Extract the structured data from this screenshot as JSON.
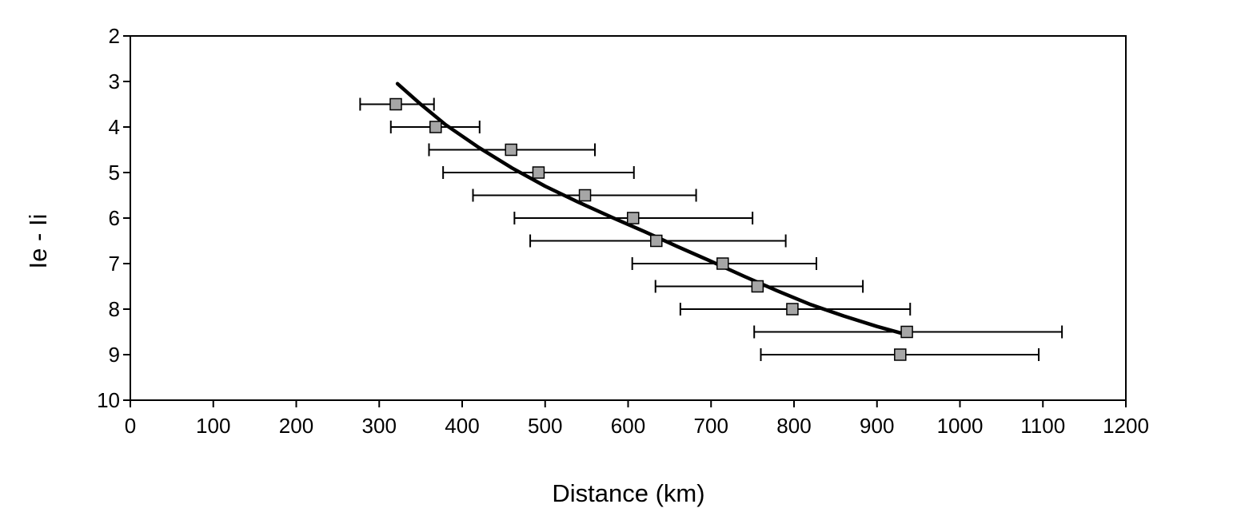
{
  "chart_data": {
    "type": "scatter",
    "xlabel": "Distance (km)",
    "ylabel": "Ie - Ii",
    "xlim": [
      0,
      1200
    ],
    "ylim": [
      2,
      10
    ],
    "y_inverted": true,
    "x_ticks": [
      0,
      100,
      200,
      300,
      400,
      500,
      600,
      700,
      800,
      900,
      1000,
      1100,
      1200
    ],
    "y_ticks": [
      2,
      3,
      4,
      5,
      6,
      7,
      8,
      9,
      10
    ],
    "grid": false,
    "legend": "none",
    "series": [
      {
        "type": "scatter",
        "marker": "square",
        "marker_color": "#a6a6a6",
        "points": [
          {
            "x": 320,
            "y": 3.5,
            "xerr_low": 277,
            "xerr_high": 366
          },
          {
            "x": 368,
            "y": 4.0,
            "xerr_low": 314,
            "xerr_high": 421
          },
          {
            "x": 459,
            "y": 4.5,
            "xerr_low": 360,
            "xerr_high": 560
          },
          {
            "x": 492,
            "y": 5.0,
            "xerr_low": 377,
            "xerr_high": 607
          },
          {
            "x": 548,
            "y": 5.5,
            "xerr_low": 413,
            "xerr_high": 682
          },
          {
            "x": 606,
            "y": 6.0,
            "xerr_low": 463,
            "xerr_high": 750
          },
          {
            "x": 634,
            "y": 6.5,
            "xerr_low": 482,
            "xerr_high": 790
          },
          {
            "x": 714,
            "y": 7.0,
            "xerr_low": 605,
            "xerr_high": 827
          },
          {
            "x": 756,
            "y": 7.5,
            "xerr_low": 633,
            "xerr_high": 883
          },
          {
            "x": 798,
            "y": 8.0,
            "xerr_low": 663,
            "xerr_high": 940
          },
          {
            "x": 936,
            "y": 8.5,
            "xerr_low": 752,
            "xerr_high": 1123
          },
          {
            "x": 928,
            "y": 9.0,
            "xerr_low": 760,
            "xerr_high": 1095
          }
        ]
      },
      {
        "type": "line",
        "line_color": "#000000",
        "x": [
          322,
          350,
          380,
          420,
          460,
          500,
          540,
          580,
          620,
          660,
          700,
          740,
          780,
          820,
          860,
          900,
          934
        ],
        "y": [
          3.05,
          3.5,
          3.95,
          4.45,
          4.9,
          5.3,
          5.65,
          5.98,
          6.3,
          6.63,
          6.95,
          7.28,
          7.6,
          7.9,
          8.15,
          8.38,
          8.55
        ]
      }
    ]
  }
}
